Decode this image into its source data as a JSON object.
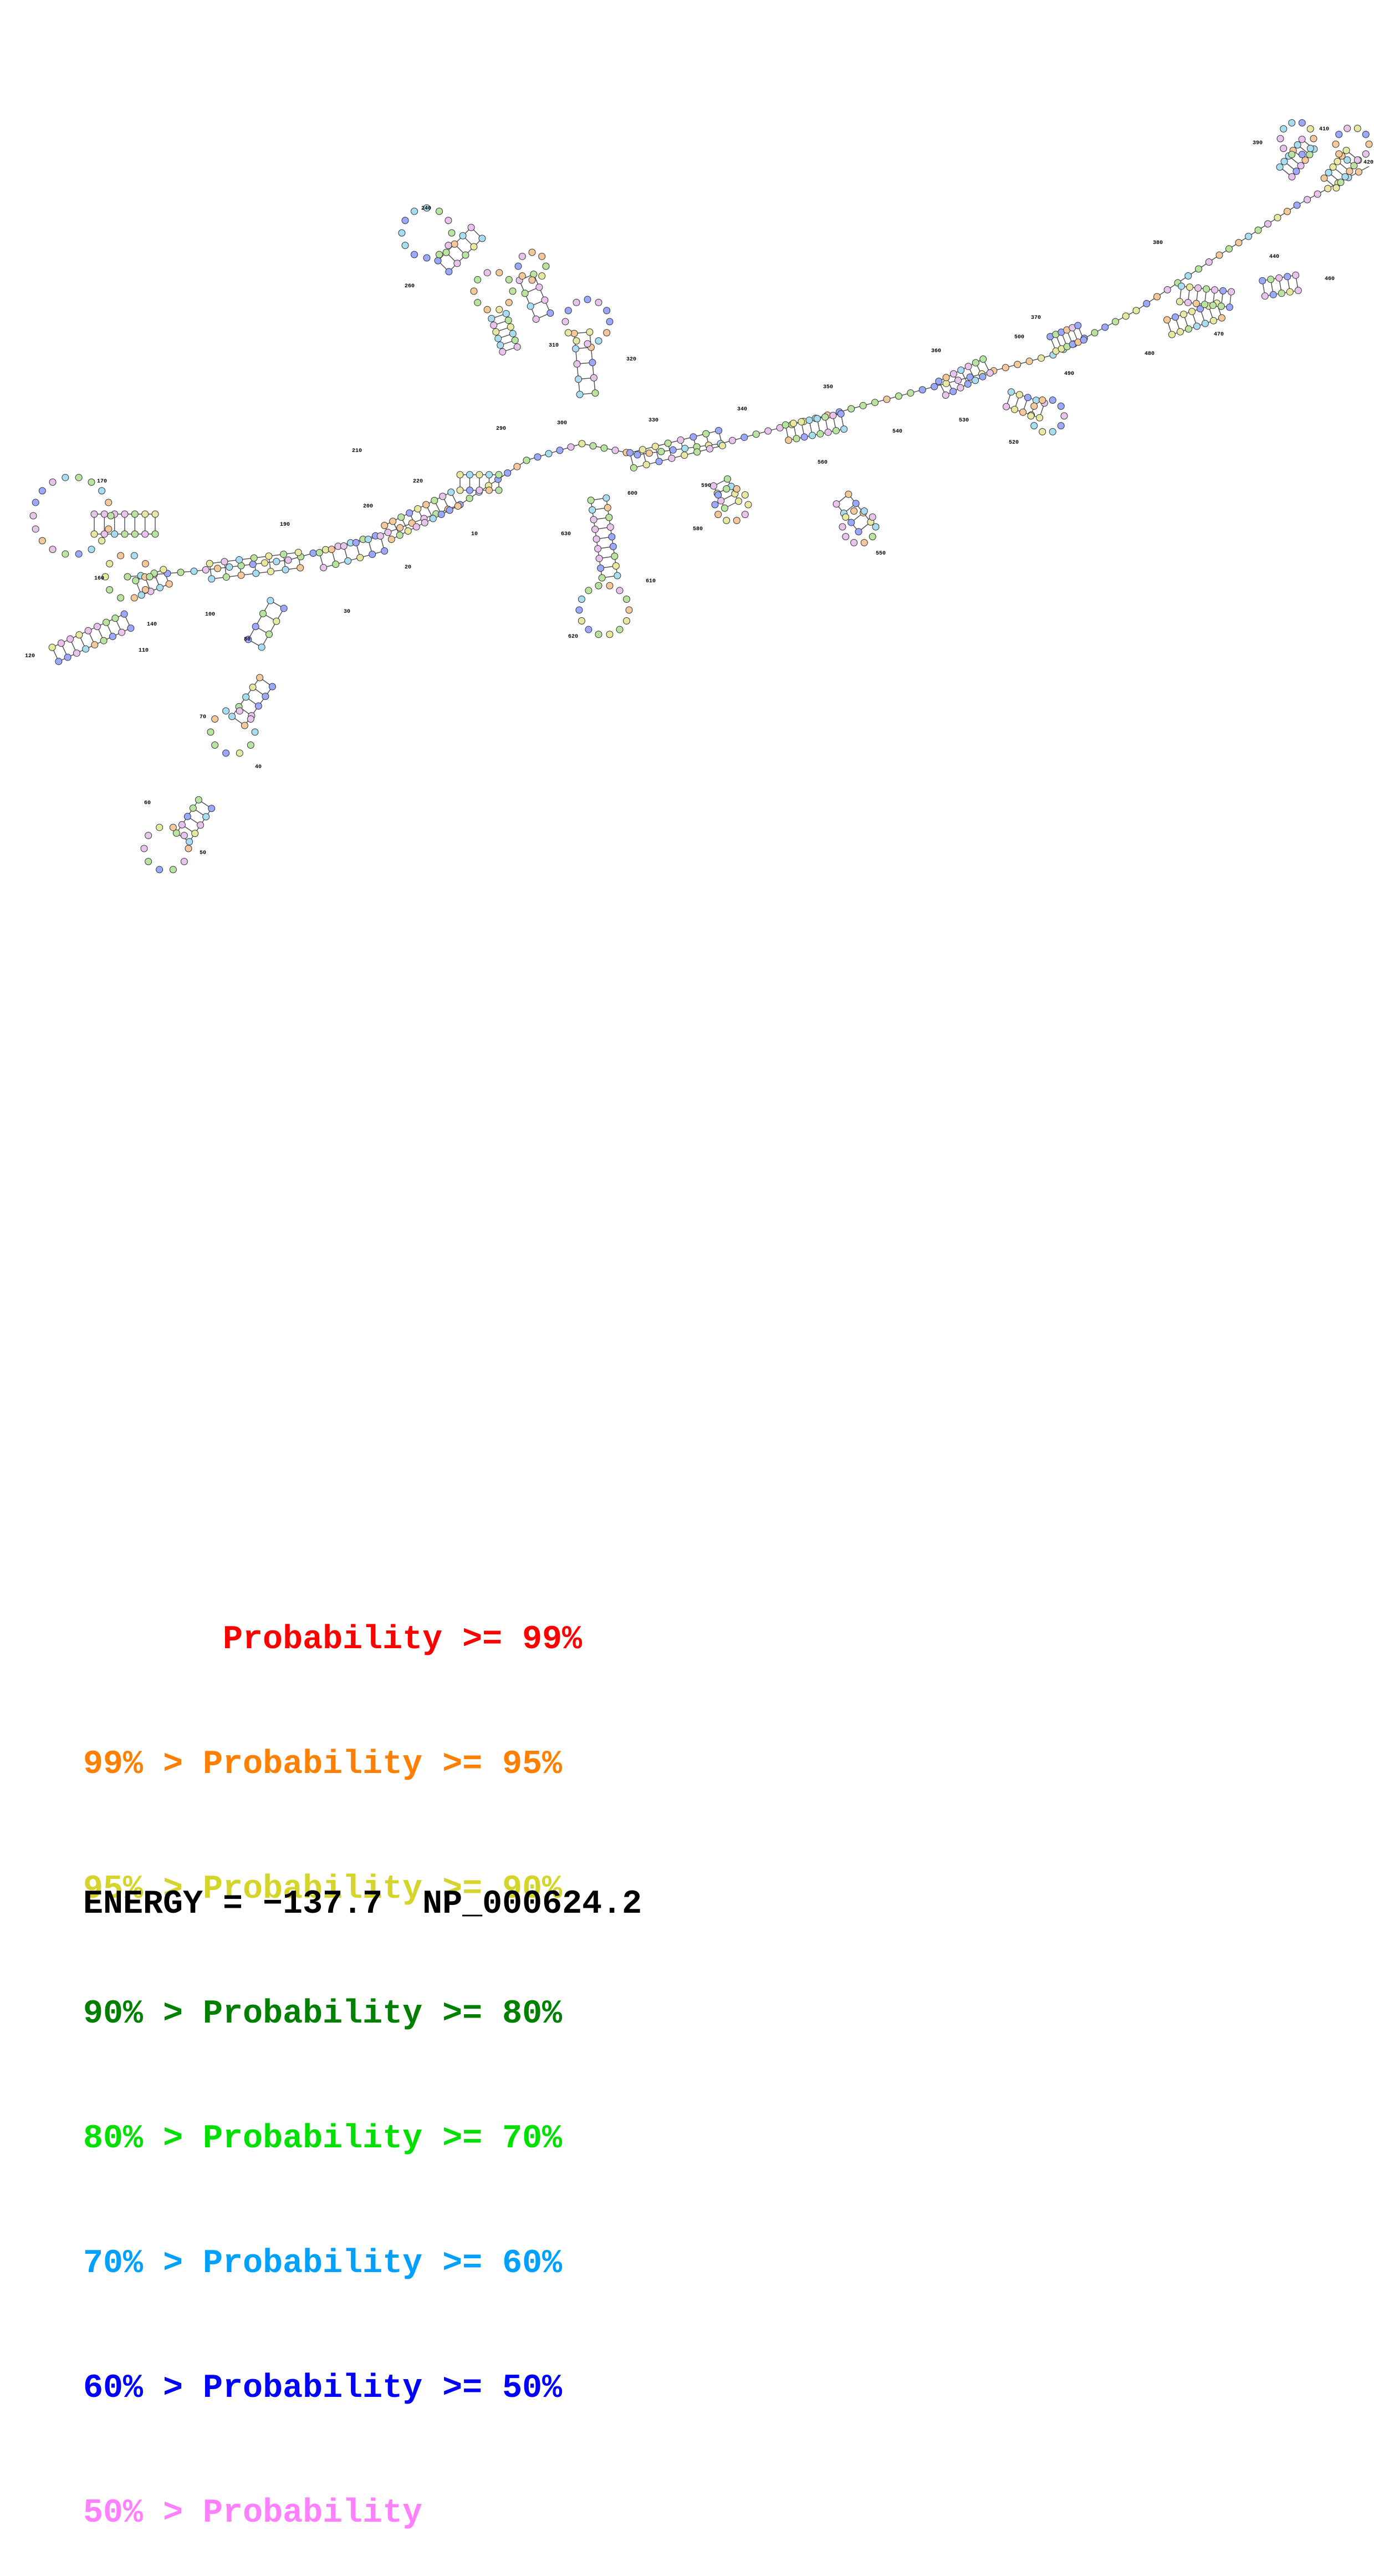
{
  "colors": {
    "p99": "#ff0000",
    "p95": "#ff8000",
    "p90": "#d4d42a",
    "p80": "#008000",
    "p70": "#00e000",
    "p60": "#00a0ff",
    "p50": "#0000ff",
    "lt50": "#ff80ff"
  },
  "nucleotide_fills": {
    "pink": "#e8c4ec",
    "blue": "#9aa8ff",
    "green": "#b8e4a0",
    "cyan": "#a8dcf0",
    "yellow": "#e8e8a0",
    "orange": "#f4c898"
  },
  "position_labels": [
    "10",
    "20",
    "30",
    "40",
    "50",
    "60",
    "70",
    "80",
    "100",
    "110",
    "120",
    "140",
    "160",
    "170",
    "190",
    "200",
    "210",
    "220",
    "240",
    "260",
    "290",
    "300",
    "310",
    "320",
    "330",
    "340",
    "350",
    "360",
    "370",
    "380",
    "390",
    "410",
    "420",
    "440",
    "460",
    "470",
    "480",
    "490",
    "500",
    "520",
    "530",
    "540",
    "550",
    "560",
    "580",
    "590",
    "600",
    "610",
    "620",
    "630"
  ],
  "legend": [
    {
      "prefix": "       ",
      "text": "Probability >= 99%",
      "color_key": "p99"
    },
    {
      "prefix": "99% > ",
      "text": "Probability >= 95%",
      "color_key": "p95"
    },
    {
      "prefix": "95% > ",
      "text": "Probability >= 90%",
      "color_key": "p90"
    },
    {
      "prefix": "90% > ",
      "text": "Probability >= 80%",
      "color_key": "p80"
    },
    {
      "prefix": "80% > ",
      "text": "Probability >= 70%",
      "color_key": "p70"
    },
    {
      "prefix": "70% > ",
      "text": "Probability >= 60%",
      "color_key": "p60"
    },
    {
      "prefix": "60% > ",
      "text": "Probability >= 50%",
      "color_key": "p50"
    },
    {
      "prefix": "50% > ",
      "text": "Probability",
      "color_key": "lt50"
    }
  ],
  "footer": {
    "energy": "ENERGY = −137.7",
    "sequence_id": "NP_000624.2"
  }
}
